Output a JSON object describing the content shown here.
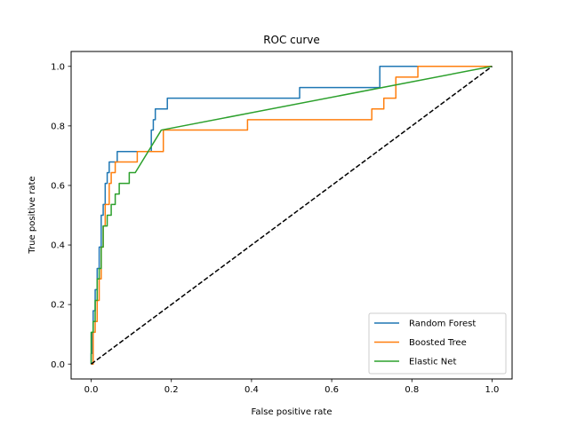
{
  "chart_data": {
    "type": "line",
    "title": "ROC curve",
    "xlabel": "False positive rate",
    "ylabel": "True positive rate",
    "xlim": [
      -0.05,
      1.05
    ],
    "ylim": [
      -0.05,
      1.05
    ],
    "xticks": [
      0.0,
      0.2,
      0.4,
      0.6,
      0.8,
      1.0
    ],
    "yticks": [
      0.0,
      0.2,
      0.4,
      0.6,
      0.8,
      1.0
    ],
    "tick_labels_x": [
      "0.0",
      "0.2",
      "0.4",
      "0.6",
      "0.8",
      "1.0"
    ],
    "tick_labels_y": [
      "0.0",
      "0.2",
      "0.4",
      "0.6",
      "0.8",
      "1.0"
    ],
    "grid": false,
    "legend_position": "bottom-right",
    "series": [
      {
        "name": "Random Forest",
        "color": "#1f77b4",
        "x": [
          0,
          0,
          0.003,
          0.003,
          0.005,
          0.005,
          0.01,
          0.01,
          0.015,
          0.015,
          0.02,
          0.02,
          0.025,
          0.025,
          0.03,
          0.03,
          0.035,
          0.035,
          0.04,
          0.04,
          0.045,
          0.045,
          0.05,
          0.05,
          0.06,
          0.06,
          0.065,
          0.065,
          0.15,
          0.15,
          0.155,
          0.155,
          0.16,
          0.16,
          0.19,
          0.19,
          0.52,
          0.52,
          0.53,
          0.53,
          0.72,
          0.72,
          1.0
        ],
        "y": [
          0.0,
          0.036,
          0.036,
          0.107,
          0.107,
          0.179,
          0.179,
          0.25,
          0.25,
          0.321,
          0.321,
          0.393,
          0.393,
          0.5,
          0.5,
          0.536,
          0.536,
          0.607,
          0.607,
          0.643,
          0.643,
          0.679,
          0.679,
          0.679,
          0.679,
          0.679,
          0.679,
          0.714,
          0.714,
          0.786,
          0.786,
          0.821,
          0.821,
          0.857,
          0.857,
          0.893,
          0.893,
          0.929,
          0.929,
          0.929,
          0.929,
          1.0,
          1.0
        ]
      },
      {
        "name": "Boosted Tree",
        "color": "#ff7f0e",
        "x": [
          0,
          0.005,
          0.005,
          0.01,
          0.01,
          0.015,
          0.015,
          0.02,
          0.02,
          0.025,
          0.025,
          0.03,
          0.03,
          0.035,
          0.035,
          0.045,
          0.045,
          0.05,
          0.05,
          0.06,
          0.06,
          0.065,
          0.065,
          0.115,
          0.115,
          0.165,
          0.165,
          0.18,
          0.18,
          0.39,
          0.39,
          0.7,
          0.7,
          0.73,
          0.73,
          0.76,
          0.76,
          0.815,
          0.815,
          1.0
        ],
        "y": [
          0.0,
          0.0,
          0.107,
          0.107,
          0.143,
          0.143,
          0.214,
          0.214,
          0.286,
          0.286,
          0.393,
          0.393,
          0.464,
          0.464,
          0.536,
          0.536,
          0.607,
          0.607,
          0.643,
          0.643,
          0.679,
          0.679,
          0.679,
          0.679,
          0.714,
          0.714,
          0.714,
          0.714,
          0.786,
          0.786,
          0.821,
          0.821,
          0.857,
          0.857,
          0.893,
          0.893,
          0.964,
          0.964,
          1.0,
          1.0
        ]
      },
      {
        "name": "Elastic Net",
        "color": "#2ca02c",
        "x": [
          0,
          0,
          0.005,
          0.005,
          0.01,
          0.01,
          0.015,
          0.015,
          0.02,
          0.02,
          0.025,
          0.025,
          0.03,
          0.03,
          0.04,
          0.04,
          0.05,
          0.05,
          0.06,
          0.06,
          0.07,
          0.07,
          0.085,
          0.085,
          0.095,
          0.095,
          0.11,
          0.11,
          0.175,
          1.0
        ],
        "y": [
          0.0,
          0.107,
          0.107,
          0.143,
          0.143,
          0.214,
          0.214,
          0.286,
          0.286,
          0.321,
          0.321,
          0.393,
          0.393,
          0.464,
          0.464,
          0.5,
          0.5,
          0.536,
          0.536,
          0.571,
          0.571,
          0.607,
          0.607,
          0.607,
          0.607,
          0.643,
          0.643,
          0.643,
          0.786,
          1.0
        ]
      },
      {
        "name": "",
        "color": "#000000",
        "dashed": true,
        "x": [
          0,
          1
        ],
        "y": [
          0,
          1
        ]
      }
    ]
  }
}
